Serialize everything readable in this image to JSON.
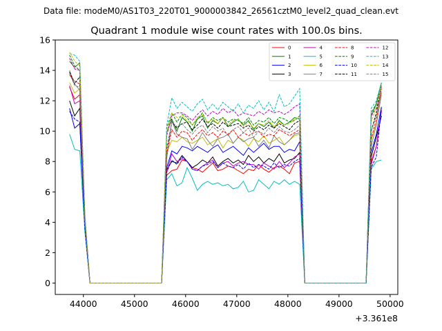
{
  "suptitle": "Data file: modeM0/AS1T03_220T01_9000003842_26561cztM0_level2_quad_clean.evt",
  "chart_data": {
    "type": "line",
    "title": "Quadrant 1 module wise count rates with 100.0s bins.",
    "xlabel": "",
    "ylabel": "",
    "x_offset_label": "+3.361e8",
    "xlim": [
      43450,
      50150
    ],
    "ylim": [
      -0.75,
      16
    ],
    "xticks": [
      44000,
      45000,
      46000,
      47000,
      48000,
      49000,
      50000
    ],
    "xtick_labels": [
      "44000",
      "45000",
      "46000",
      "47000",
      "48000",
      "49000",
      "50000"
    ],
    "yticks": [
      0,
      2,
      4,
      6,
      8,
      10,
      12,
      14,
      16
    ],
    "ytick_labels": [
      "0",
      "2",
      "4",
      "6",
      "8",
      "10",
      "12",
      "14",
      "16"
    ],
    "grid": false,
    "legend_position": "top-right",
    "x_segments": [
      [
        43730,
        43830,
        43930,
        44030,
        44130,
        44230,
        44330,
        44430,
        44530,
        44630,
        44730,
        44830,
        44930,
        45030,
        45130,
        45230,
        45330,
        45430,
        45530,
        45630,
        45730,
        45830,
        45930,
        46030,
        46130,
        46230,
        46330,
        46430,
        46530,
        46630,
        46730,
        46830,
        46930,
        47030,
        47130,
        47230,
        47330,
        47430,
        47530,
        47630,
        47730,
        47830,
        47930,
        48030,
        48130,
        48230,
        48330,
        48430,
        48530,
        48630,
        48730,
        48830,
        48930,
        49030,
        49130,
        49230,
        49330,
        49430,
        49530,
        49630,
        49730,
        49830
      ]
    ],
    "series": [
      {
        "name": "0",
        "color": "#ff0000",
        "dash": false,
        "values": [
          12.9,
          12.1,
          12.4,
          3.5,
          0,
          0,
          0,
          0,
          0,
          0,
          0,
          0,
          0,
          0,
          0,
          0,
          0,
          0,
          0,
          7.1,
          7.4,
          7.5,
          8.1,
          8.0,
          7.6,
          7.5,
          7.3,
          7.6,
          7.9,
          7.4,
          7.5,
          7.7,
          7.6,
          7.4,
          7.2,
          7.5,
          7.4,
          7.8,
          7.5,
          7.3,
          7.6,
          7.7,
          7.5,
          7.2,
          7.9,
          8.0,
          0,
          0,
          0,
          0,
          0,
          0,
          0,
          0,
          0,
          0,
          0,
          0,
          0,
          8.0,
          9.0,
          11.3
        ]
      },
      {
        "name": "1",
        "color": "#008000",
        "dash": false,
        "values": [
          14.6,
          14.2,
          14.5,
          4.3,
          0,
          0,
          0,
          0,
          0,
          0,
          0,
          0,
          0,
          0,
          0,
          0,
          0,
          0,
          0,
          9.9,
          10.8,
          10.0,
          10.9,
          10.6,
          10.0,
          10.8,
          11.0,
          10.2,
          10.7,
          10.5,
          10.9,
          10.3,
          10.6,
          10.8,
          10.4,
          10.7,
          10.1,
          10.5,
          10.3,
          10.6,
          10.2,
          10.7,
          10.4,
          10.6,
          10.9,
          10.8,
          0,
          0,
          0,
          0,
          0,
          0,
          0,
          0,
          0,
          0,
          0,
          0,
          0,
          11.0,
          11.8,
          13.2
        ]
      },
      {
        "name": "2",
        "color": "#0000ff",
        "dash": false,
        "values": [
          11.5,
          10.2,
          10.5,
          3.6,
          0,
          0,
          0,
          0,
          0,
          0,
          0,
          0,
          0,
          0,
          0,
          0,
          0,
          0,
          0,
          7.6,
          8.7,
          8.5,
          9.0,
          8.9,
          8.7,
          9.0,
          8.8,
          8.6,
          8.9,
          9.1,
          8.6,
          8.8,
          9.0,
          8.7,
          8.4,
          8.9,
          8.6,
          8.9,
          9.2,
          8.8,
          9.0,
          9.0,
          8.6,
          8.8,
          8.7,
          9.3,
          0,
          0,
          0,
          0,
          0,
          0,
          0,
          0,
          0,
          0,
          0,
          0,
          0,
          8.6,
          9.8,
          11.6
        ]
      },
      {
        "name": "3",
        "color": "#000000",
        "dash": false,
        "values": [
          12.0,
          11.0,
          11.5,
          3.7,
          0,
          0,
          0,
          0,
          0,
          0,
          0,
          0,
          0,
          0,
          0,
          0,
          0,
          0,
          0,
          7.5,
          8.0,
          7.9,
          8.4,
          8.0,
          7.6,
          7.8,
          8.1,
          7.9,
          8.3,
          7.7,
          8.0,
          8.2,
          7.9,
          8.1,
          7.8,
          8.4,
          8.0,
          8.3,
          7.9,
          8.2,
          8.0,
          8.5,
          7.9,
          8.1,
          8.2,
          8.6,
          0,
          0,
          0,
          0,
          0,
          0,
          0,
          0,
          0,
          0,
          0,
          0,
          0,
          8.3,
          9.6,
          11.0
        ]
      },
      {
        "name": "4",
        "color": "#bf00bf",
        "dash": false,
        "values": [
          13.0,
          11.8,
          12.0,
          3.9,
          0,
          0,
          0,
          0,
          0,
          0,
          0,
          0,
          0,
          0,
          0,
          0,
          0,
          0,
          0,
          7.3,
          8.5,
          8.0,
          8.2,
          8.0,
          7.5,
          7.4,
          7.7,
          7.9,
          8.1,
          7.6,
          7.9,
          8.0,
          7.7,
          7.9,
          8.0,
          7.8,
          7.8,
          7.5,
          7.9,
          7.7,
          7.5,
          8.0,
          7.6,
          7.9,
          8.3,
          8.5,
          0,
          0,
          0,
          0,
          0,
          0,
          0,
          0,
          0,
          0,
          0,
          0,
          0,
          7.8,
          9.0,
          11.4
        ]
      },
      {
        "name": "5",
        "color": "#00bfbf",
        "dash": false,
        "values": [
          9.8,
          8.8,
          8.7,
          3.4,
          0,
          0,
          0,
          0,
          0,
          0,
          0,
          0,
          0,
          0,
          0,
          0,
          0,
          0,
          0,
          6.8,
          7.2,
          6.4,
          6.6,
          7.6,
          6.9,
          6.1,
          6.5,
          6.7,
          6.5,
          6.6,
          6.4,
          6.5,
          6.2,
          6.3,
          6.7,
          6.0,
          6.1,
          6.8,
          6.5,
          6.2,
          6.7,
          6.5,
          6.8,
          6.5,
          6.7,
          6.5,
          0,
          0,
          0,
          0,
          0,
          0,
          0,
          0,
          0,
          0,
          0,
          0,
          0,
          7.5,
          8.0,
          8.1
        ]
      },
      {
        "name": "6",
        "color": "#bfbf00",
        "dash": false,
        "values": [
          13.2,
          12.5,
          12.8,
          4.0,
          0,
          0,
          0,
          0,
          0,
          0,
          0,
          0,
          0,
          0,
          0,
          0,
          0,
          0,
          0,
          8.6,
          9.4,
          9.3,
          9.6,
          9.3,
          9.2,
          9.4,
          9.6,
          9.1,
          9.3,
          9.5,
          8.9,
          9.4,
          9.2,
          9.6,
          9.4,
          9.0,
          9.5,
          9.3,
          9.7,
          9.2,
          9.4,
          9.6,
          9.1,
          9.4,
          9.7,
          9.8,
          0,
          0,
          0,
          0,
          0,
          0,
          0,
          0,
          0,
          0,
          0,
          0,
          0,
          9.4,
          10.5,
          12.5
        ]
      },
      {
        "name": "7",
        "color": "#808080",
        "dash": false,
        "values": [
          14.0,
          13.1,
          12.7,
          4.1,
          0,
          0,
          0,
          0,
          0,
          0,
          0,
          0,
          0,
          0,
          0,
          0,
          0,
          0,
          0,
          8.2,
          10.7,
          9.8,
          9.6,
          9.5,
          8.8,
          9.3,
          9.9,
          9.4,
          9.0,
          9.5,
          9.6,
          9.8,
          9.2,
          9.6,
          9.3,
          9.5,
          9.6,
          9.0,
          9.4,
          8.9,
          9.7,
          9.3,
          9.1,
          9.4,
          9.8,
          9.9,
          0,
          0,
          0,
          0,
          0,
          0,
          0,
          0,
          0,
          0,
          0,
          0,
          0,
          9.0,
          10.4,
          12.4
        ]
      },
      {
        "name": "8",
        "color": "#ff0000",
        "dash": true,
        "values": [
          13.7,
          13.3,
          13.1,
          4.1,
          0,
          0,
          0,
          0,
          0,
          0,
          0,
          0,
          0,
          0,
          0,
          0,
          0,
          0,
          0,
          8.5,
          10.1,
          9.6,
          10.0,
          9.9,
          9.4,
          9.8,
          10.1,
          9.7,
          9.9,
          9.6,
          10.0,
          9.8,
          10.1,
          9.6,
          9.9,
          9.7,
          9.9,
          10.0,
          9.6,
          9.8,
          9.7,
          10.1,
          9.9,
          9.7,
          9.9,
          10.1,
          0,
          0,
          0,
          0,
          0,
          0,
          0,
          0,
          0,
          0,
          0,
          0,
          0,
          9.5,
          10.8,
          12.8
        ]
      },
      {
        "name": "9",
        "color": "#008000",
        "dash": true,
        "values": [
          15.0,
          14.3,
          14.0,
          4.4,
          0,
          0,
          0,
          0,
          0,
          0,
          0,
          0,
          0,
          0,
          0,
          0,
          0,
          0,
          0,
          10.2,
          11.2,
          10.6,
          11.1,
          10.9,
          10.4,
          10.8,
          11.2,
          10.5,
          10.9,
          10.7,
          10.9,
          10.6,
          10.8,
          10.7,
          10.5,
          10.9,
          10.4,
          10.7,
          10.6,
          10.9,
          10.5,
          10.9,
          10.8,
          10.6,
          10.7,
          11.0,
          0,
          0,
          0,
          0,
          0,
          0,
          0,
          0,
          0,
          0,
          0,
          0,
          0,
          11.2,
          11.8,
          13.1
        ]
      },
      {
        "name": "10",
        "color": "#0000ff",
        "dash": true,
        "values": [
          11.3,
          10.8,
          10.6,
          3.6,
          0,
          0,
          0,
          0,
          0,
          0,
          0,
          0,
          0,
          0,
          0,
          0,
          0,
          0,
          0,
          7.3,
          8.1,
          7.8,
          8.3,
          8.0,
          7.5,
          7.4,
          7.7,
          7.8,
          8.0,
          7.6,
          7.9,
          7.7,
          7.6,
          7.8,
          7.5,
          7.9,
          7.6,
          7.8,
          7.7,
          7.5,
          7.9,
          7.6,
          7.8,
          7.7,
          8.0,
          8.2,
          0,
          0,
          0,
          0,
          0,
          0,
          0,
          0,
          0,
          0,
          0,
          0,
          0,
          7.6,
          8.3,
          11.5
        ]
      },
      {
        "name": "11",
        "color": "#000000",
        "dash": true,
        "values": [
          13.9,
          13.1,
          13.6,
          4.2,
          0,
          0,
          0,
          0,
          0,
          0,
          0,
          0,
          0,
          0,
          0,
          0,
          0,
          0,
          0,
          8.8,
          10.6,
          10.2,
          10.5,
          10.6,
          10.1,
          10.4,
          10.8,
          10.3,
          10.5,
          10.2,
          10.6,
          10.3,
          10.4,
          10.5,
          10.2,
          10.4,
          10.0,
          10.3,
          10.1,
          10.4,
          10.2,
          10.5,
          10.3,
          10.1,
          10.5,
          10.7,
          0,
          0,
          0,
          0,
          0,
          0,
          0,
          0,
          0,
          0,
          0,
          0,
          0,
          10.0,
          11.2,
          13.0
        ]
      },
      {
        "name": "12",
        "color": "#bf00bf",
        "dash": true,
        "values": [
          14.8,
          14.1,
          14.0,
          4.4,
          0,
          0,
          0,
          0,
          0,
          0,
          0,
          0,
          0,
          0,
          0,
          0,
          0,
          0,
          0,
          9.7,
          11.0,
          11.2,
          11.2,
          11.0,
          10.7,
          11.1,
          11.4,
          11.0,
          11.3,
          11.1,
          11.5,
          11.2,
          11.4,
          11.0,
          11.2,
          11.1,
          11.0,
          11.3,
          11.1,
          11.4,
          11.2,
          11.3,
          11.1,
          11.3,
          11.6,
          11.8,
          0,
          0,
          0,
          0,
          0,
          0,
          0,
          0,
          0,
          0,
          0,
          0,
          0,
          11.0,
          11.5,
          12.9
        ]
      },
      {
        "name": "13",
        "color": "#00bfbf",
        "dash": true,
        "values": [
          15.1,
          15.0,
          14.6,
          4.5,
          0,
          0,
          0,
          0,
          0,
          0,
          0,
          0,
          0,
          0,
          0,
          0,
          0,
          0,
          0,
          10.4,
          12.2,
          11.5,
          11.9,
          11.6,
          11.3,
          11.8,
          12.1,
          11.4,
          11.8,
          11.4,
          11.9,
          11.6,
          11.3,
          11.8,
          11.2,
          11.7,
          11.5,
          12.0,
          11.4,
          11.9,
          11.3,
          12.4,
          11.6,
          11.8,
          12.3,
          12.8,
          0,
          0,
          0,
          0,
          0,
          0,
          0,
          0,
          0,
          0,
          0,
          0,
          0,
          11.5,
          12.0,
          13.2
        ]
      },
      {
        "name": "14",
        "color": "#bfbf00",
        "dash": true,
        "values": [
          15.2,
          14.6,
          14.3,
          4.4,
          0,
          0,
          0,
          0,
          0,
          0,
          0,
          0,
          0,
          0,
          0,
          0,
          0,
          0,
          0,
          9.9,
          11.2,
          10.9,
          11.0,
          10.7,
          10.4,
          10.9,
          11.1,
          10.6,
          10.8,
          10.5,
          10.9,
          10.4,
          10.7,
          10.8,
          10.3,
          10.6,
          10.2,
          10.5,
          10.4,
          10.7,
          10.3,
          10.6,
          10.4,
          10.5,
          10.8,
          10.9,
          0,
          0,
          0,
          0,
          0,
          0,
          0,
          0,
          0,
          0,
          0,
          0,
          0,
          10.6,
          11.6,
          13.0
        ]
      },
      {
        "name": "15",
        "color": "#808080",
        "dash": true,
        "values": [
          13.8,
          13.0,
          12.9,
          4.1,
          0,
          0,
          0,
          0,
          0,
          0,
          0,
          0,
          0,
          0,
          0,
          0,
          0,
          0,
          0,
          8.9,
          10.6,
          10.3,
          10.5,
          10.1,
          9.8,
          10.2,
          10.4,
          9.9,
          10.3,
          10.0,
          10.2,
          9.7,
          10.1,
          10.3,
          9.9,
          10.2,
          9.6,
          10.0,
          9.8,
          10.2,
          9.9,
          10.3,
          10.0,
          9.9,
          10.1,
          10.4,
          0,
          0,
          0,
          0,
          0,
          0,
          0,
          0,
          0,
          0,
          0,
          0,
          0,
          10.0,
          11.0,
          12.6
        ]
      }
    ]
  }
}
